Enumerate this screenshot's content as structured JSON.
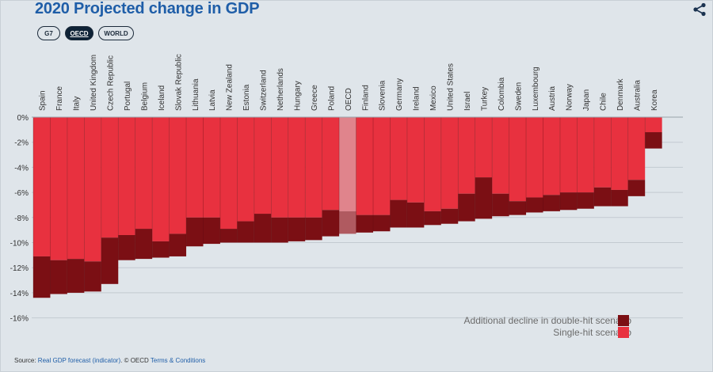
{
  "title": "2020 Projected change in GDP",
  "tabs": [
    {
      "label": "G7",
      "active": false
    },
    {
      "label": "OECD",
      "active": true
    },
    {
      "label": "WORLD",
      "active": false
    }
  ],
  "legend": {
    "double_hit": "Additional decline in double-hit scenario",
    "single_hit": "Single-hit scenario"
  },
  "source": {
    "prefix": "Source: ",
    "link1": "Real GDP forecast (indicator)",
    "middle": ". © OECD ",
    "link2": "Terms & Conditions"
  },
  "colors": {
    "single_hit": "#e8313f",
    "double_hit": "#7b0f14",
    "oecd_single": "#e0848c",
    "oecd_double": "#b05a60",
    "background": "#dfe5ea",
    "title": "#1f5ea8"
  },
  "chart_data": {
    "type": "bar",
    "title": "2020 Projected change in GDP",
    "ylim": [
      -16,
      0
    ],
    "yticks": [
      "0%",
      "-2%",
      "-4%",
      "-6%",
      "-8%",
      "-10%",
      "-12%",
      "-14%",
      "-16%"
    ],
    "ytick_values": [
      0,
      -2,
      -4,
      -6,
      -8,
      -10,
      -12,
      -14,
      -16
    ],
    "grid": true,
    "legend_position": "bottom-right",
    "categories": [
      "Spain",
      "France",
      "Italy",
      "United Kingdom",
      "Czech Republic",
      "Portugal",
      "Belgium",
      "Iceland",
      "Slovak Republic",
      "Lithuania",
      "Latvia",
      "New Zealand",
      "Estonia",
      "Switzerland",
      "Netherlands",
      "Hungary",
      "Greece",
      "Poland",
      "OECD",
      "Finland",
      "Slovenia",
      "Germany",
      "Ireland",
      "Mexico",
      "United States",
      "Israel",
      "Turkey",
      "Colombia",
      "Sweden",
      "Luxembourg",
      "Austria",
      "Norway",
      "Japan",
      "Chile",
      "Denmark",
      "Australia",
      "Korea"
    ],
    "highlight": "OECD",
    "series": [
      {
        "name": "Single-hit scenario",
        "values": [
          -11.1,
          -11.4,
          -11.3,
          -11.5,
          -9.6,
          -9.4,
          -8.9,
          -9.9,
          -9.3,
          -8.0,
          -8.0,
          -8.9,
          -8.3,
          -7.7,
          -8.0,
          -8.0,
          -8.0,
          -7.4,
          -7.5,
          -7.8,
          -7.8,
          -6.6,
          -6.8,
          -7.5,
          -7.3,
          -6.1,
          -4.8,
          -6.1,
          -6.7,
          -6.4,
          -6.2,
          -6.0,
          -6.0,
          -5.6,
          -5.8,
          -5.0,
          -1.2
        ]
      },
      {
        "name": "Additional decline in double-hit scenario",
        "values": [
          -14.4,
          -14.1,
          -14.0,
          -13.9,
          -13.3,
          -11.4,
          -11.3,
          -11.2,
          -11.1,
          -10.3,
          -10.1,
          -10.0,
          -10.0,
          -10.0,
          -10.0,
          -9.9,
          -9.8,
          -9.5,
          -9.3,
          -9.2,
          -9.1,
          -8.8,
          -8.8,
          -8.6,
          -8.5,
          -8.3,
          -8.1,
          -7.9,
          -7.8,
          -7.6,
          -7.5,
          -7.4,
          -7.3,
          -7.1,
          -7.1,
          -6.3,
          -2.5
        ]
      }
    ]
  }
}
